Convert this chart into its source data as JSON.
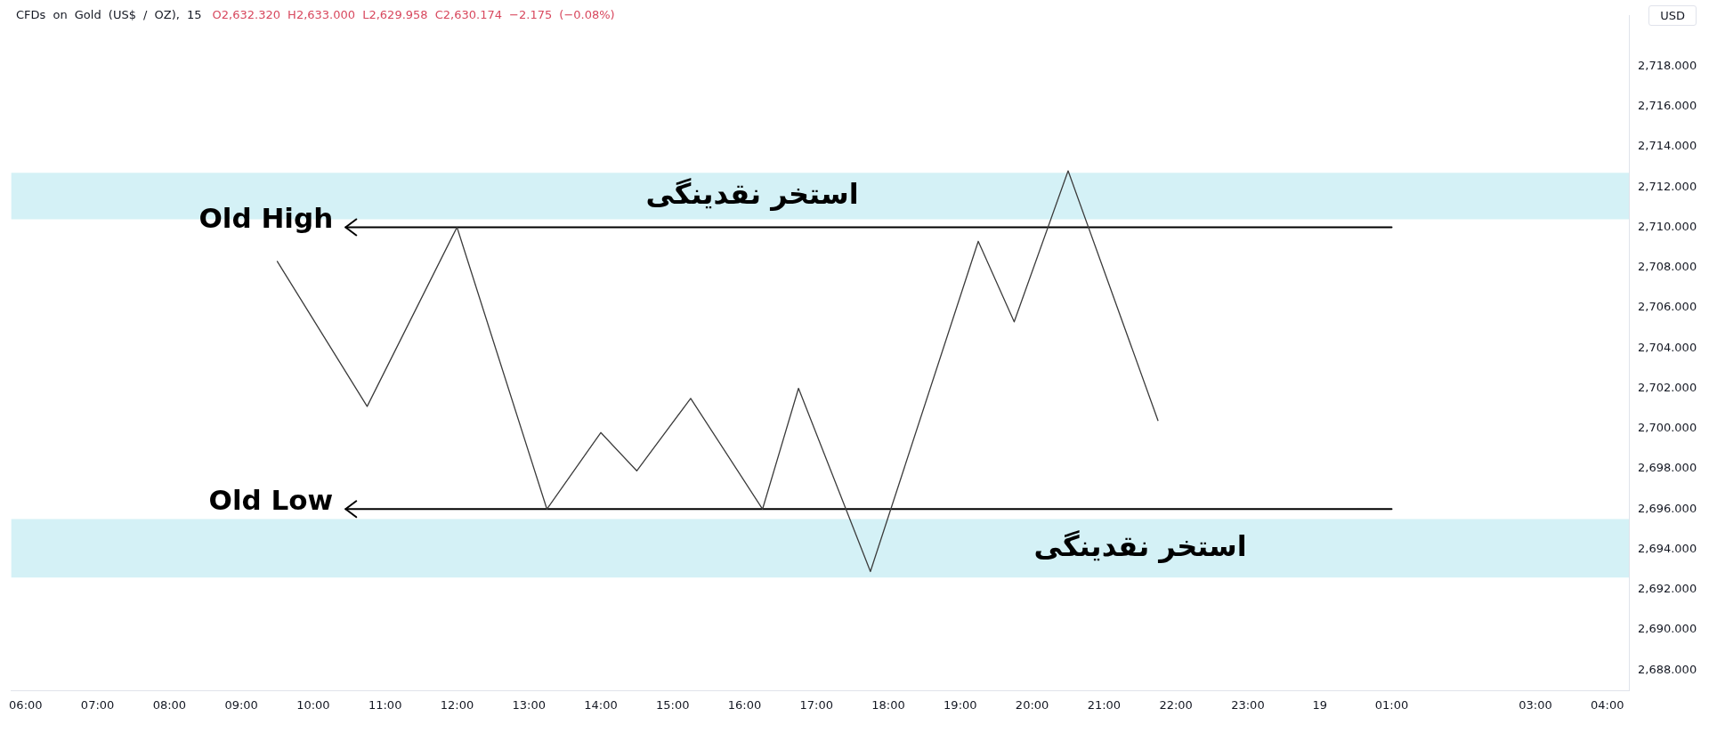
{
  "chart_data": {
    "type": "line",
    "title": "CFDs on Gold (US$ / OZ), 15",
    "subtitle": "O2,632.320 H2,633.000 L2,629.958 C2,630.174 −2.175 (−0.08%)",
    "ylabel": "USD",
    "series": [
      {
        "color": "#3c3c3c",
        "x": [
          "--10-18T09:30",
          "--10-18T10:45",
          "--10-18T12:00",
          "--10-18T13:15",
          "--10-18T14:00",
          "--10-18T14:30",
          "--10-18T15:15",
          "--10-18T16:15",
          "--10-18T16:45",
          "--10-18T17:45",
          "--10-18T19:15",
          "--10-18T19:45",
          "--10-18T20:30",
          "--10-18T21:45"
        ],
        "values": [
          2708.3,
          2701.1,
          2710.0,
          2696.0,
          2699.8,
          2697.9,
          2701.5,
          2696.0,
          2702.0,
          2692.9,
          2709.3,
          2705.3,
          2712.8,
          2700.4
        ]
      },
      {
        "name": "Old High",
        "color": "#000000",
        "x": [
          "--10-18T10:27",
          "--10-19T01:00"
        ],
        "values": [
          2710,
          2710
        ]
      },
      {
        "name": "Old Low",
        "color": "#000000",
        "x": [
          "--10-18T10:27",
          "--10-19T01:00"
        ],
        "values": [
          2696,
          2696
        ]
      }
    ],
    "bands": [
      {
        "axis": "y",
        "from": 2710.4,
        "to": 2712.7,
        "color": "#d4f1f6",
        "label": "استخر نقدینگی"
      },
      {
        "axis": "y",
        "from": 2692.6,
        "to": 2695.5,
        "color": "#d4f1f6",
        "label": "استخر نقدینگی"
      }
    ],
    "xlim": [
      "--10-18T05:48",
      "--10-19T04:18"
    ],
    "xticks": [
      {
        "value": "--10-18T06:00",
        "label": "06:00"
      },
      {
        "value": "--10-18T07:00",
        "label": "07:00"
      },
      {
        "value": "--10-18T08:00",
        "label": "08:00"
      },
      {
        "value": "--10-18T09:00",
        "label": "09:00"
      },
      {
        "value": "--10-18T10:00",
        "label": "10:00"
      },
      {
        "value": "--10-18T11:00",
        "label": "11:00"
      },
      {
        "value": "--10-18T12:00",
        "label": "12:00"
      },
      {
        "value": "--10-18T13:00",
        "label": "13:00"
      },
      {
        "value": "--10-18T14:00",
        "label": "14:00"
      },
      {
        "value": "--10-18T15:00",
        "label": "15:00"
      },
      {
        "value": "--10-18T16:00",
        "label": "16:00"
      },
      {
        "value": "--10-18T17:00",
        "label": "17:00"
      },
      {
        "value": "--10-18T18:00",
        "label": "18:00"
      },
      {
        "value": "--10-18T19:00",
        "label": "19:00"
      },
      {
        "value": "--10-18T20:00",
        "label": "20:00"
      },
      {
        "value": "--10-18T21:00",
        "label": "21:00"
      },
      {
        "value": "--10-18T22:00",
        "label": "22:00"
      },
      {
        "value": "--10-18T23:00",
        "label": "23:00"
      },
      {
        "value": "--10-19T00:00",
        "label": "19"
      },
      {
        "value": "--10-19T01:00",
        "label": "01:00"
      },
      {
        "value": "--10-19T03:00",
        "label": "03:00"
      },
      {
        "value": "--10-19T04:00",
        "label": "04:00"
      }
    ],
    "ylim": [
      2687,
      2720.5
    ],
    "yticks": [
      {
        "value": 2688,
        "label": "2,688.000"
      },
      {
        "value": 2690,
        "label": "2,690.000"
      },
      {
        "value": 2692,
        "label": "2,692.000"
      },
      {
        "value": 2694,
        "label": "2,694.000"
      },
      {
        "value": 2696,
        "label": "2,696.000"
      },
      {
        "value": 2698,
        "label": "2,698.000"
      },
      {
        "value": 2700,
        "label": "2,700.000"
      },
      {
        "value": 2702,
        "label": "2,702.000"
      },
      {
        "value": 2704,
        "label": "2,704.000"
      },
      {
        "value": 2706,
        "label": "2,706.000"
      },
      {
        "value": 2708,
        "label": "2,708.000"
      },
      {
        "value": 2710,
        "label": "2,710.000"
      },
      {
        "value": 2712,
        "label": "2,712.000"
      },
      {
        "value": 2714,
        "label": "2,714.000"
      },
      {
        "value": 2716,
        "label": "2,716.000"
      },
      {
        "value": 2718,
        "label": "2,718.000"
      }
    ]
  }
}
